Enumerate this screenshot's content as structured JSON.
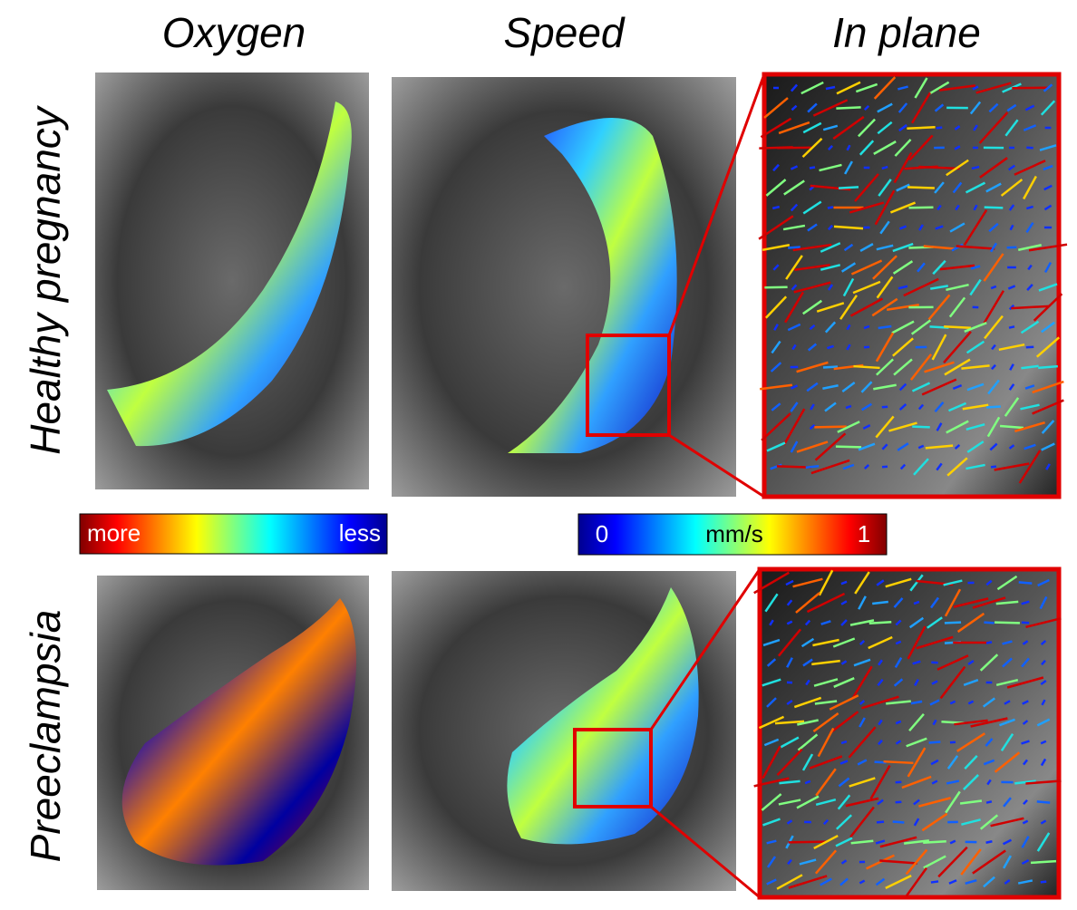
{
  "columns": [
    "Oxygen",
    "Speed",
    "In plane"
  ],
  "rows": [
    "Healthy pregnancy",
    "Preeclampsia"
  ],
  "oxygen_colorbar": {
    "high": "more",
    "low": "less"
  },
  "speed_colorbar": {
    "min": 0,
    "unit": "mm/s",
    "max": 1
  }
}
